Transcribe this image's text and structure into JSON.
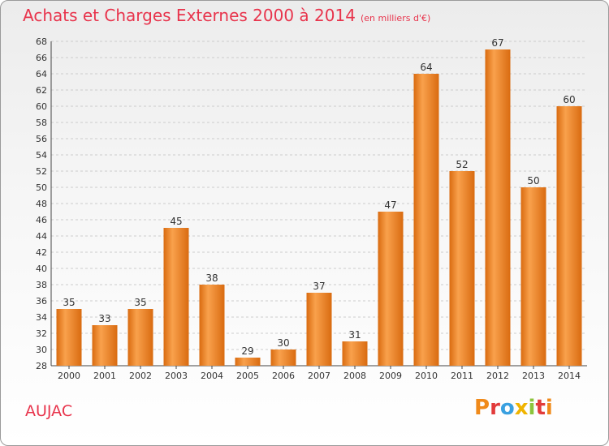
{
  "header": {
    "title": "Achats et Charges Externes 2000 à 2014",
    "subtitle": "(en milliers d'€)"
  },
  "footer": {
    "commune": "AUJAC",
    "logo_letters": [
      "P",
      "r",
      "o",
      "x",
      "i",
      "t",
      "i"
    ],
    "logo_colors": [
      "#f08a1a",
      "#e23b3b",
      "#3aa0e0",
      "#f0b400",
      "#8cc43c",
      "#e23b3b",
      "#f08a1a"
    ]
  },
  "colors": {
    "bar_light": "#f9a14c",
    "bar_dark": "#d96b10",
    "grid": "#cccccc",
    "axis_text": "#333333"
  },
  "chart_data": {
    "type": "bar",
    "title": "Achats et Charges Externes 2000 à 2014",
    "subtitle": "(en milliers d'€)",
    "xlabel": "",
    "ylabel": "",
    "categories": [
      "2000",
      "2001",
      "2002",
      "2003",
      "2004",
      "2005",
      "2006",
      "2007",
      "2008",
      "2009",
      "2010",
      "2011",
      "2012",
      "2013",
      "2014"
    ],
    "values": [
      35,
      33,
      35,
      45,
      38,
      29,
      30,
      37,
      31,
      47,
      64,
      52,
      67,
      50,
      60
    ],
    "ylim": [
      28,
      68
    ],
    "yticks": [
      28,
      30,
      32,
      34,
      36,
      38,
      40,
      42,
      44,
      46,
      48,
      50,
      52,
      54,
      56,
      58,
      60,
      62,
      64,
      66,
      68
    ],
    "grid": "horizontal dashed",
    "data_labels": true,
    "legend": "none"
  }
}
